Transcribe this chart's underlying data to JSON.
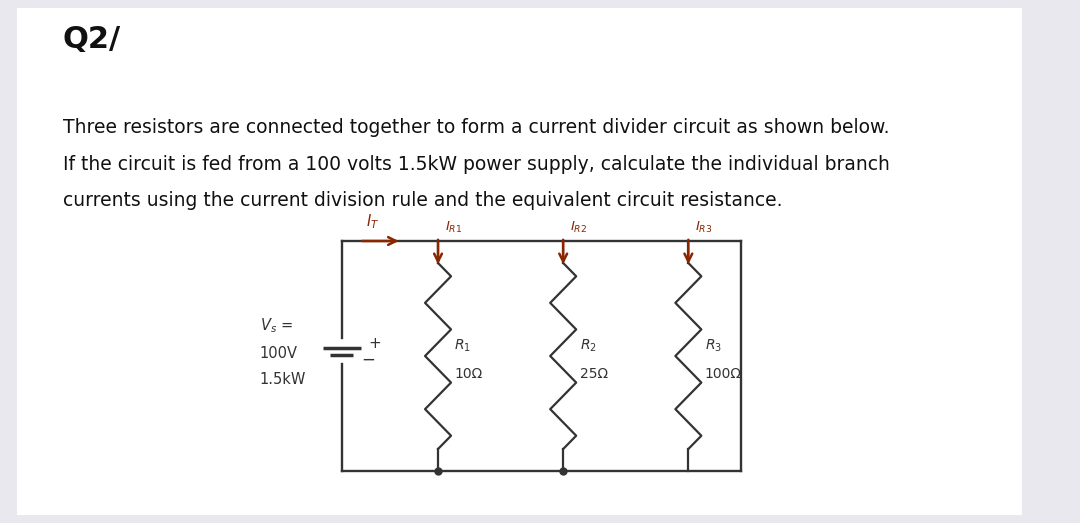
{
  "title": "Q2/",
  "description_line1": "Three resistors are connected together to form a current divider circuit as shown below.",
  "description_line2": "If the circuit is fed from a 100 volts 1.5kW power supply, calculate the individual branch",
  "description_line3": "currents using the current division rule and the equivalent circuit resistance.",
  "bg_color": "#e8e8ee",
  "panel_color": "#ffffff",
  "circuit_color": "#333333",
  "arrow_color": "#8B2500",
  "title_fontsize": 22,
  "text_fontsize": 13.5,
  "r_names": [
    "$R_1$",
    "$R_2$",
    "$R_3$"
  ],
  "r_vals": [
    "10Ω",
    "25Ω",
    "100Ω"
  ],
  "I_labels": [
    "$I_{R1}$",
    "$I_{R2}$",
    "$I_{R3}$"
  ],
  "vs_line1": "$V_s$ =",
  "vs_line2": "100V",
  "vs_line3": "1.5kW",
  "it_label": "$I_T$"
}
